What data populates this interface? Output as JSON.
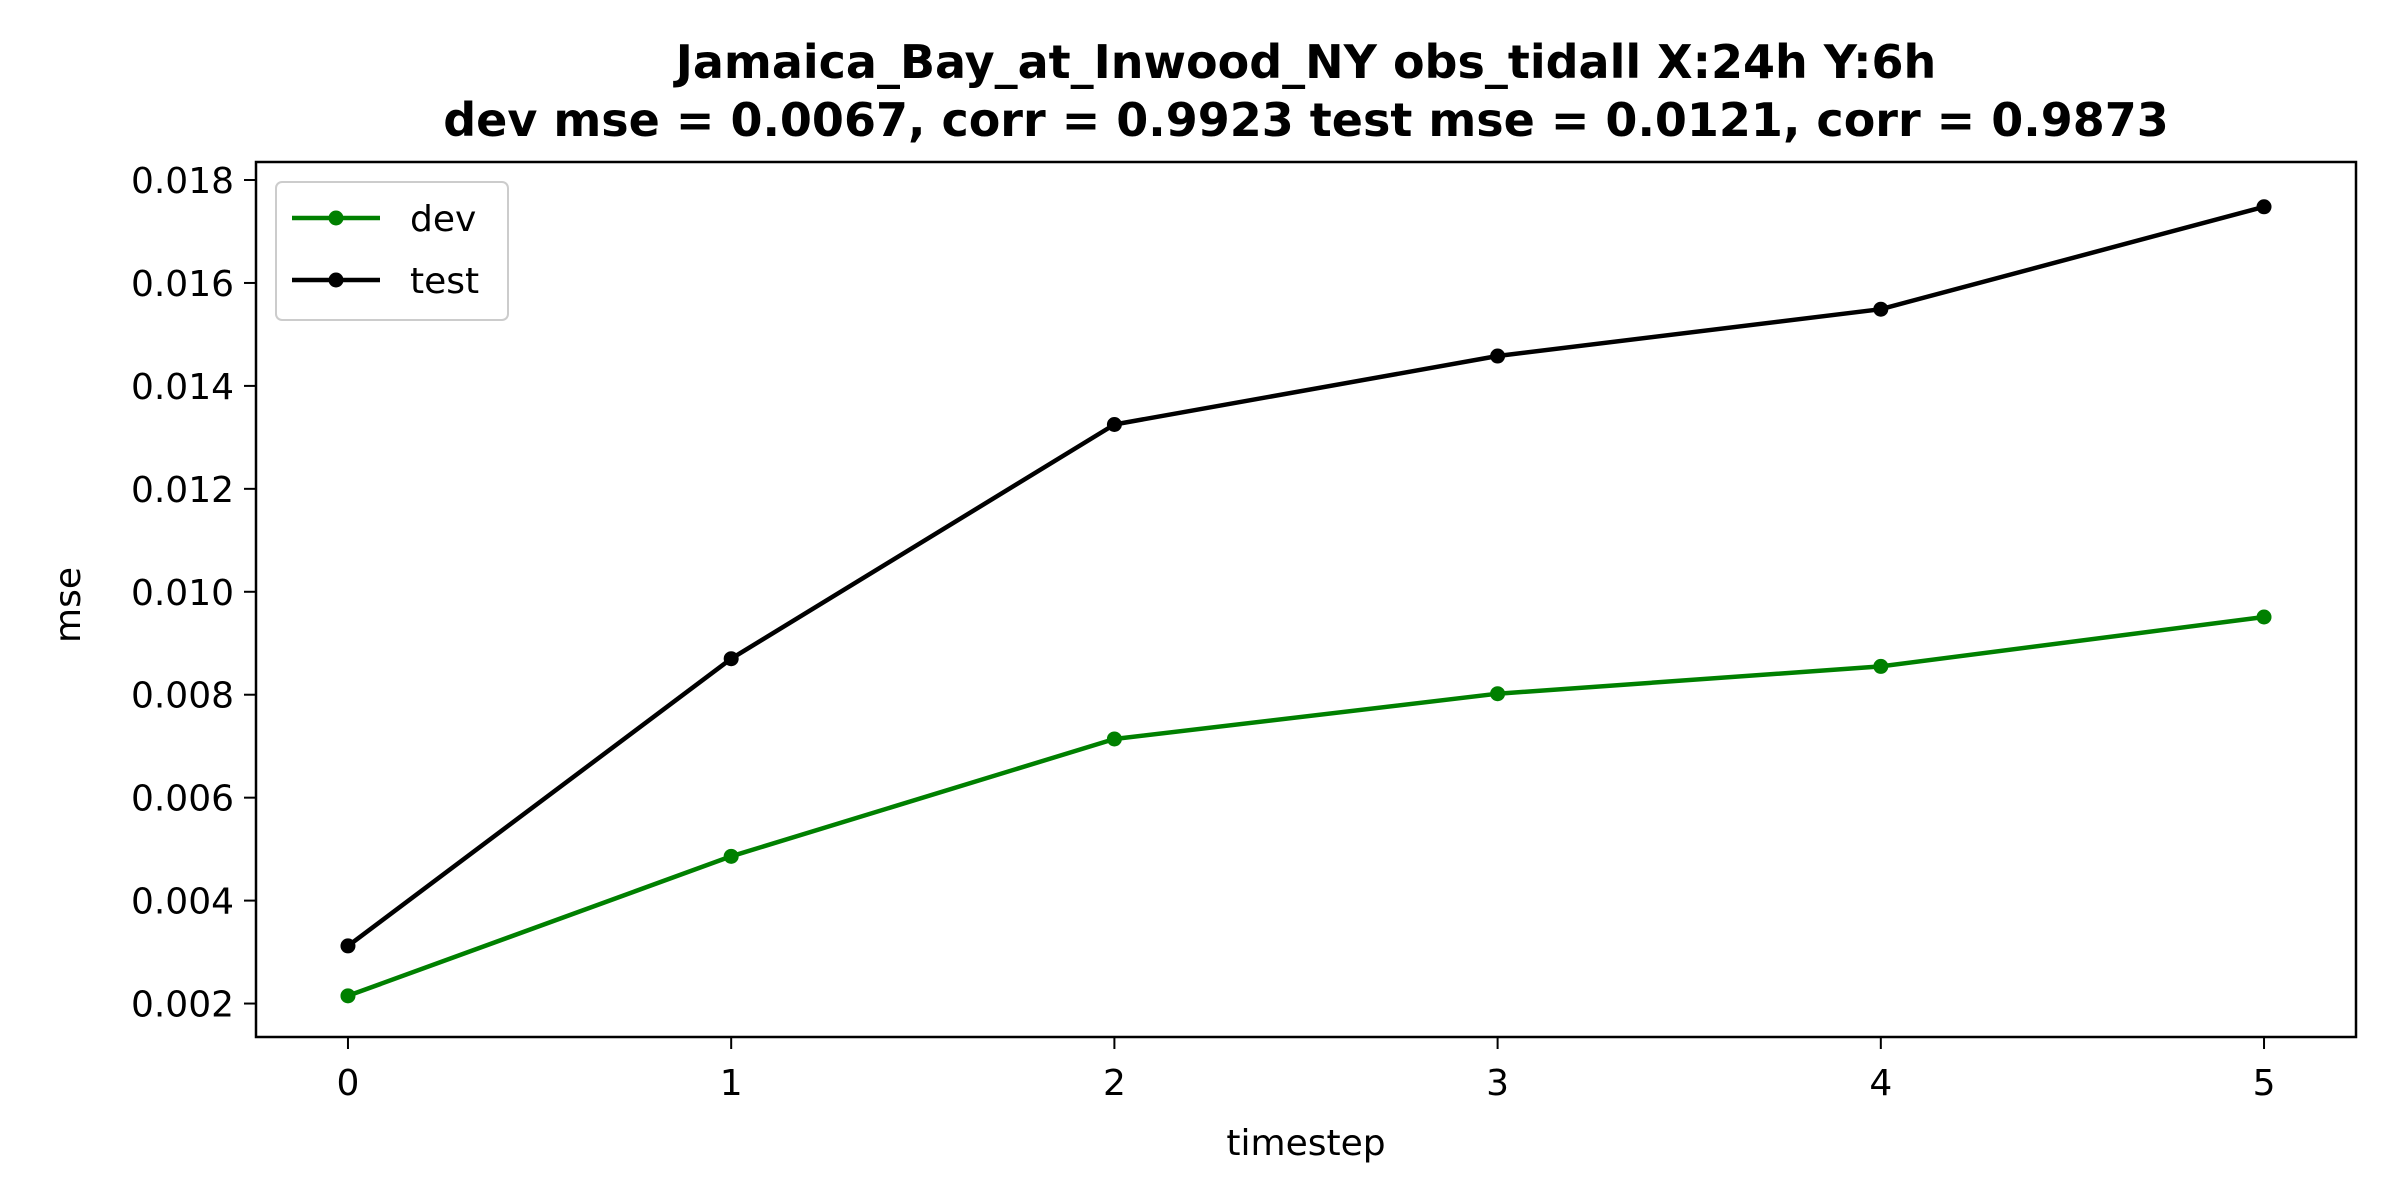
{
  "chart_data": {
    "type": "line",
    "title_line1": "Jamaica_Bay_at_Inwood_NY   obs_tidall   X:24h   Y:6h",
    "title_line2": "dev mse = 0.0067, corr = 0.9923   test mse = 0.0121, corr = 0.9873",
    "xlabel": "timestep",
    "ylabel": "mse",
    "x": [
      0,
      1,
      2,
      3,
      4,
      5
    ],
    "xticks": [
      "0",
      "1",
      "2",
      "3",
      "4",
      "5"
    ],
    "xlim": [
      -0.24,
      5.24
    ],
    "yticks": [
      0.002,
      0.004,
      0.006,
      0.008,
      0.01,
      0.012,
      0.014,
      0.016,
      0.018
    ],
    "ytick_labels": [
      "0.002",
      "0.004",
      "0.006",
      "0.008",
      "0.010",
      "0.012",
      "0.014",
      "0.016",
      "0.018"
    ],
    "ylim": [
      0.00135,
      0.01835
    ],
    "grid": false,
    "legend_position": "upper-left",
    "series": [
      {
        "name": "dev",
        "color": "#008000",
        "values": [
          0.00215,
          0.00486,
          0.00714,
          0.00802,
          0.00855,
          0.00951
        ]
      },
      {
        "name": "test",
        "color": "#000000",
        "values": [
          0.00312,
          0.0087,
          0.01325,
          0.01458,
          0.01549,
          0.01748
        ]
      }
    ]
  }
}
